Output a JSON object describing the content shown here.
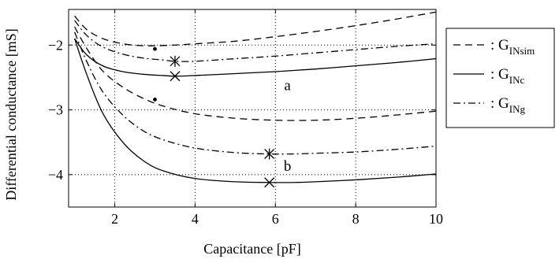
{
  "chart_data": {
    "type": "line",
    "title": "",
    "xlabel": "Capacitance [pF]",
    "ylabel": "Differential conductance [mS]",
    "xlim": [
      0.85,
      10
    ],
    "ylim": [
      -4.5,
      -1.45
    ],
    "xticks": [
      2,
      4,
      6,
      8,
      10
    ],
    "yticks": [
      -2,
      -3,
      -4
    ],
    "tick_labels": {
      "x": [
        "2",
        "4",
        "6",
        "8",
        "10"
      ],
      "y": [
        "−2",
        "−3",
        "−4"
      ]
    },
    "grid": true,
    "legend_position": "outside-right",
    "legend": [
      {
        "symbol": ": G",
        "main": "G",
        "sub": "INsim",
        "style": "dashed"
      },
      {
        "symbol": ": G",
        "main": "G",
        "sub": "INc",
        "style": "solid"
      },
      {
        "symbol": ": G",
        "main": "G",
        "sub": "INg",
        "style": "dashdot"
      }
    ],
    "group_labels": [
      {
        "text": "a",
        "x": 6.3,
        "y": -2.62
      },
      {
        "text": "b",
        "x": 6.3,
        "y": -3.87
      }
    ],
    "series": [
      {
        "group": "a",
        "style": "dashed",
        "x": [
          1.0,
          1.3,
          1.7,
          2.2,
          2.7,
          3.0,
          3.5,
          4.0,
          5.0,
          6.0,
          7.0,
          8.0,
          9.0,
          10.0
        ],
        "y": [
          -1.55,
          -1.76,
          -1.9,
          -1.98,
          -2.01,
          -2.01,
          -2.0,
          -1.98,
          -1.94,
          -1.87,
          -1.79,
          -1.7,
          -1.6,
          -1.49
        ]
      },
      {
        "group": "a",
        "style": "dashdot",
        "x": [
          1.0,
          1.3,
          1.7,
          2.2,
          2.7,
          3.2,
          3.5,
          4.0,
          5.0,
          6.0,
          7.0,
          8.0,
          9.0,
          10.0
        ],
        "y": [
          -1.62,
          -1.85,
          -2.03,
          -2.14,
          -2.2,
          -2.23,
          -2.25,
          -2.25,
          -2.21,
          -2.17,
          -2.12,
          -2.07,
          -2.02,
          -1.98
        ]
      },
      {
        "group": "a",
        "style": "solid",
        "x": [
          1.0,
          1.3,
          1.7,
          2.2,
          2.7,
          3.2,
          3.5,
          4.0,
          5.0,
          6.0,
          7.0,
          8.0,
          9.0,
          10.0
        ],
        "y": [
          -1.9,
          -2.15,
          -2.32,
          -2.41,
          -2.45,
          -2.47,
          -2.48,
          -2.47,
          -2.44,
          -2.41,
          -2.37,
          -2.32,
          -2.27,
          -2.21
        ]
      },
      {
        "group": "b",
        "style": "dashed",
        "x": [
          1.0,
          1.3,
          1.7,
          2.2,
          2.7,
          3.2,
          4.0,
          5.0,
          6.0,
          7.0,
          8.0,
          9.0,
          10.0
        ],
        "y": [
          -1.72,
          -2.05,
          -2.4,
          -2.65,
          -2.82,
          -2.94,
          -3.06,
          -3.13,
          -3.16,
          -3.16,
          -3.13,
          -3.08,
          -3.02
        ]
      },
      {
        "group": "b",
        "style": "dashdot",
        "x": [
          1.0,
          1.3,
          1.7,
          2.2,
          2.7,
          3.2,
          4.0,
          5.0,
          5.8,
          6.5,
          7.0,
          8.0,
          9.0,
          10.0
        ],
        "y": [
          -1.8,
          -2.25,
          -2.72,
          -3.08,
          -3.32,
          -3.46,
          -3.59,
          -3.66,
          -3.68,
          -3.68,
          -3.67,
          -3.65,
          -3.61,
          -3.56
        ]
      },
      {
        "group": "b",
        "style": "solid",
        "x": [
          1.0,
          1.3,
          1.7,
          2.2,
          2.7,
          3.2,
          4.0,
          5.0,
          5.8,
          6.5,
          7.0,
          8.0,
          9.0,
          10.0
        ],
        "y": [
          -1.9,
          -2.45,
          -3.05,
          -3.5,
          -3.78,
          -3.94,
          -4.06,
          -4.11,
          -4.12,
          -4.12,
          -4.11,
          -4.08,
          -4.04,
          -3.99
        ]
      }
    ],
    "markers": [
      {
        "shape": "dot",
        "x": 3.0,
        "y": -2.06
      },
      {
        "shape": "dot",
        "x": 3.0,
        "y": -2.84
      },
      {
        "shape": "asterisk",
        "x": 3.5,
        "y": -2.25
      },
      {
        "shape": "x",
        "x": 3.5,
        "y": -2.48
      },
      {
        "shape": "asterisk",
        "x": 5.85,
        "y": -3.68
      },
      {
        "shape": "x",
        "x": 5.85,
        "y": -4.12
      }
    ]
  }
}
